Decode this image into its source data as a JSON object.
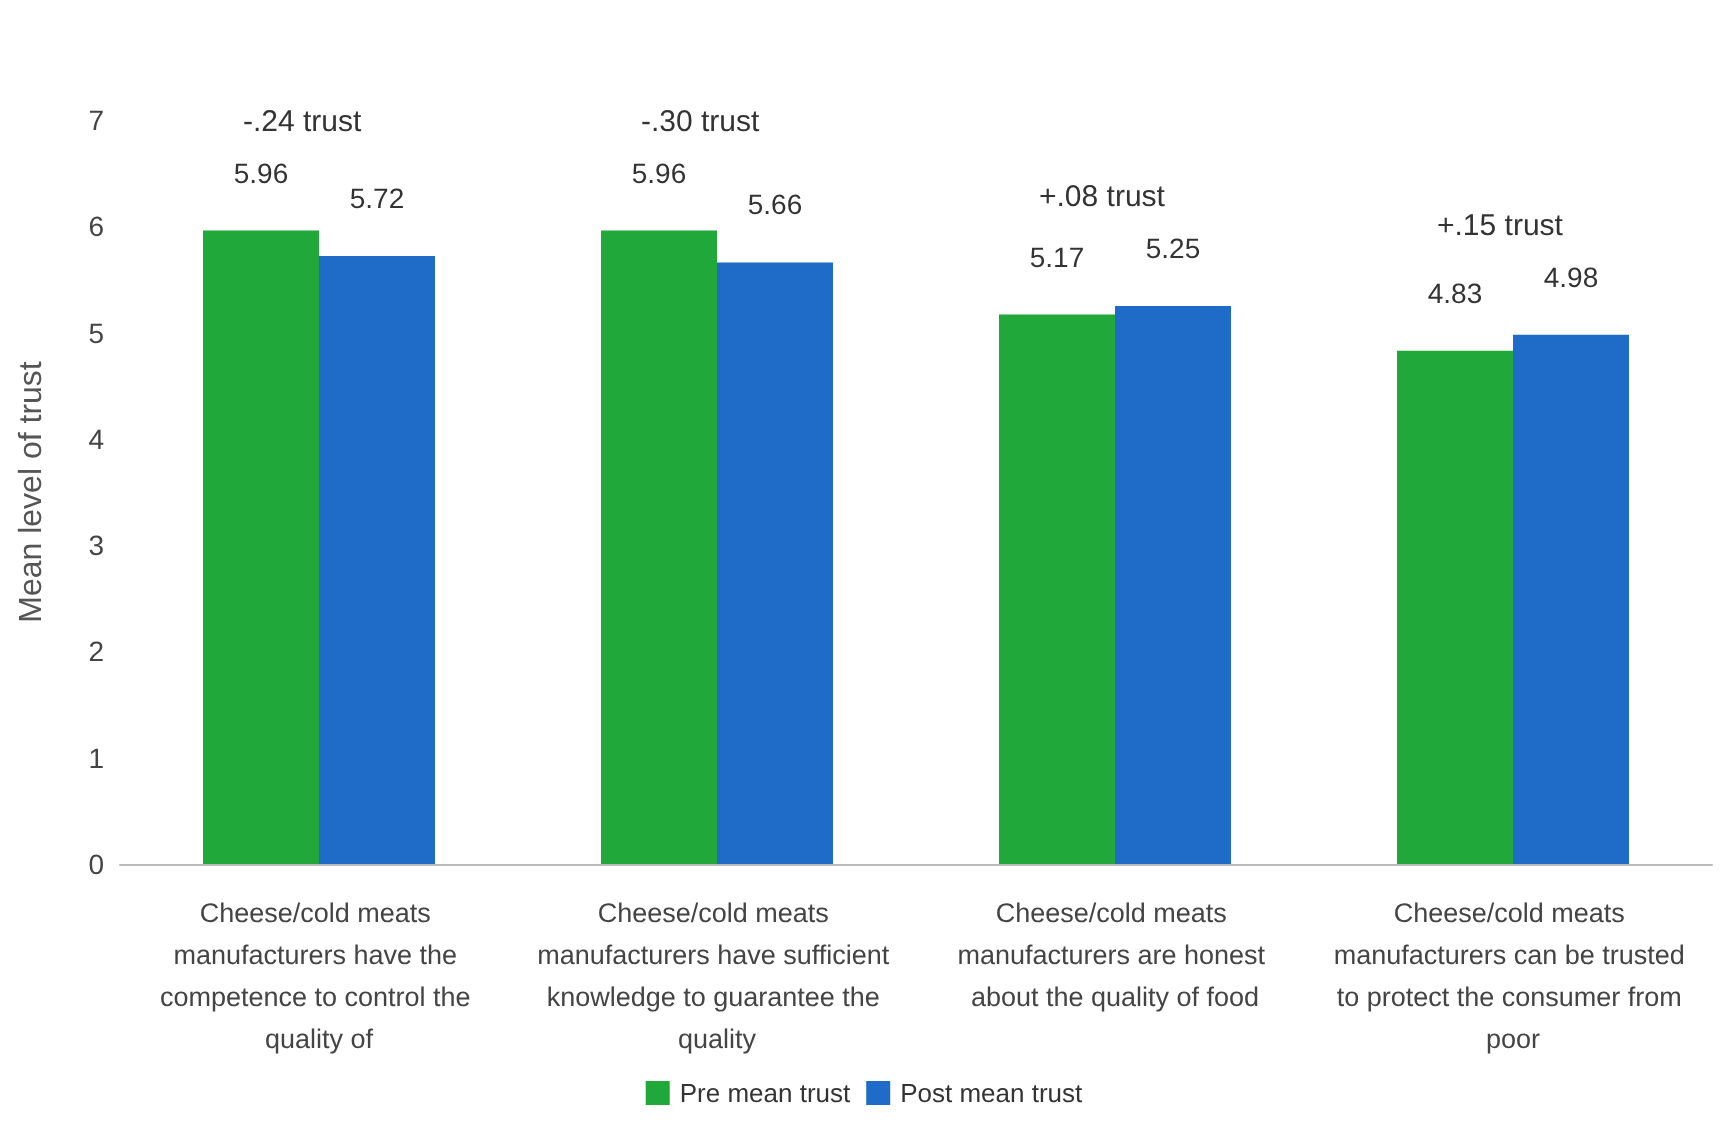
{
  "chart_data": {
    "type": "bar",
    "ylabel": "Mean level of trust",
    "categories": [
      "Cheese/cold meats manufacturers have the competence to control the quality of",
      "Cheese/cold meats manufacturers have sufficient knowledge to guarantee the quality",
      "Cheese/cold meats manufacturers are honest about the quality of food",
      "Cheese/cold meats manufacturers can be trusted to protect the consumer from poor"
    ],
    "series": [
      {
        "name": "Pre mean trust",
        "color": "#21a83a",
        "values": [
          5.96,
          5.96,
          5.17,
          4.83
        ]
      },
      {
        "name": "Post mean trust",
        "color": "#1e6cc8",
        "values": [
          5.72,
          5.66,
          5.25,
          4.98
        ]
      }
    ],
    "ylim": [
      0,
      7
    ],
    "yticks": [
      0,
      1,
      2,
      3,
      4,
      5,
      6,
      7
    ],
    "grid": false,
    "legend": "bottom",
    "data_labels": true,
    "annotations": [
      "-.24 trust",
      "-.30 trust",
      "+.08 trust",
      "+.15 trust"
    ]
  }
}
